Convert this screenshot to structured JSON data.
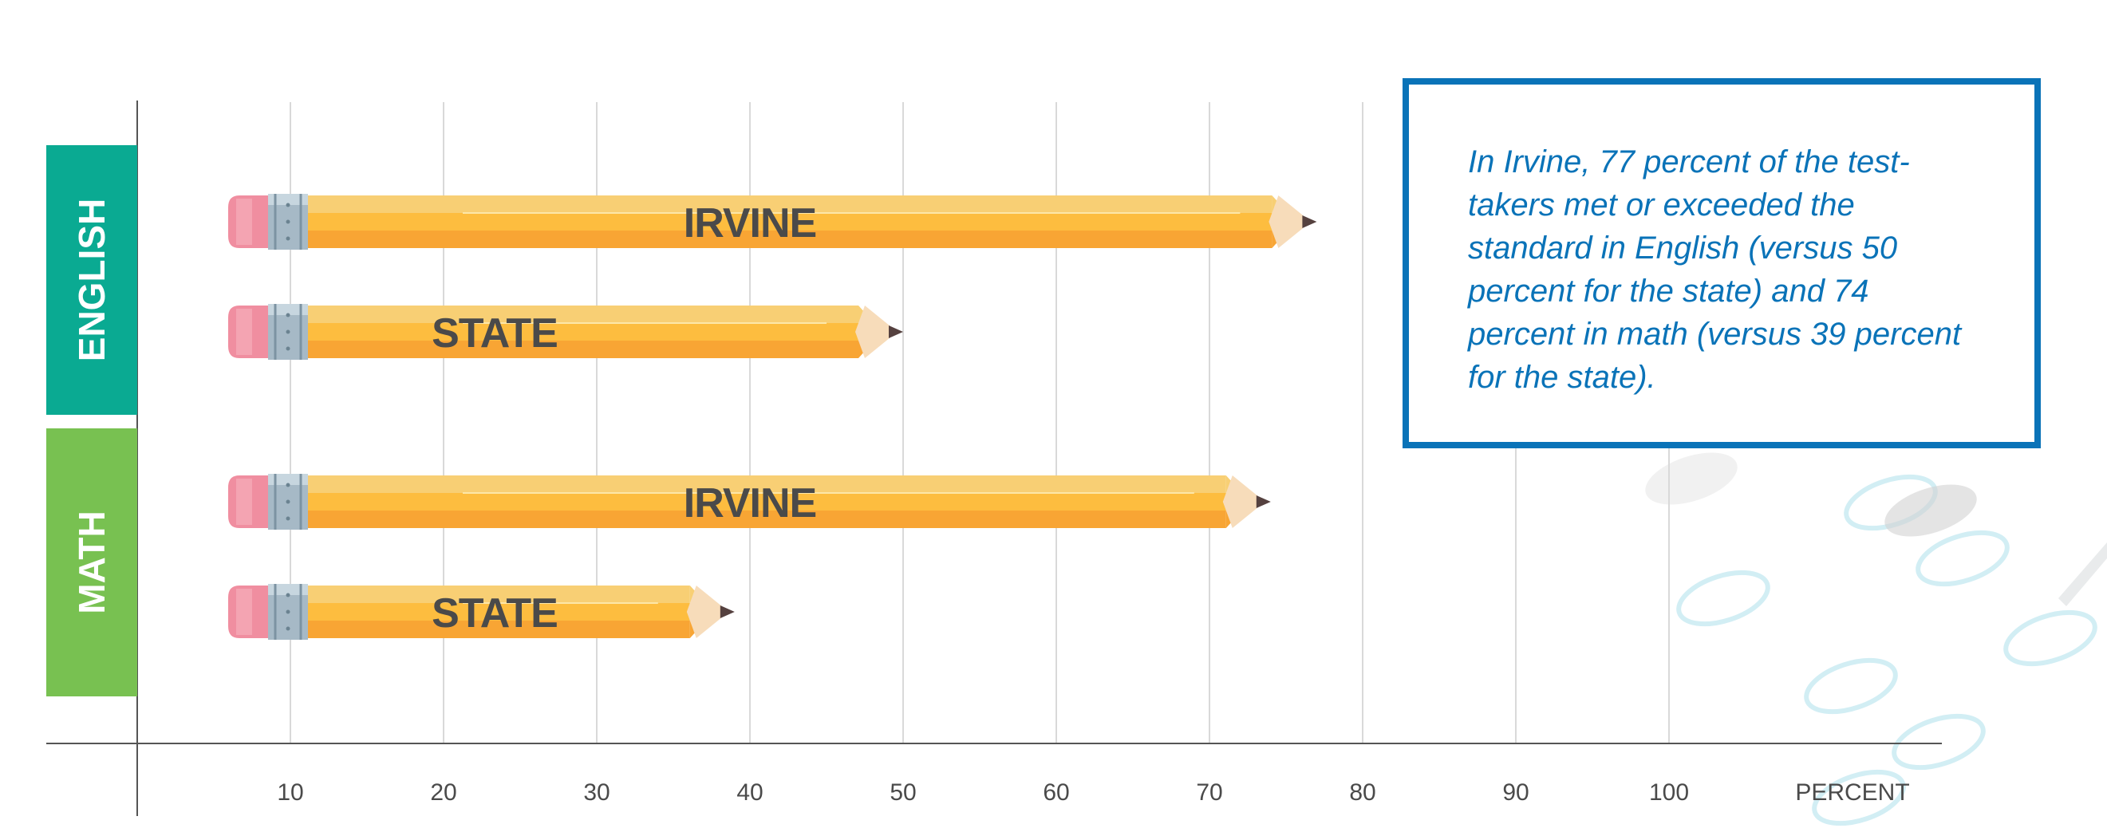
{
  "callout": {
    "text": "In Irvine, 77 percent of the test-takers met or exceeded the standard in English (versus 50 percent for the state) and 74 percent in math (versus 39 percent for the state)."
  },
  "colors": {
    "english": "#0aaa92",
    "math": "#78c151",
    "pencil_top": "#f8cf74",
    "pencil_mid": "#fdbd3f",
    "pencil_bottom": "#f8a534",
    "eraser": "#f08ea0",
    "ferrule": "#a6b9c6",
    "wood": "#f7dcba",
    "lead": "#55413f",
    "label": "#4a4a4a",
    "callout": "#0a73b8"
  },
  "chart_data": {
    "type": "bar",
    "orientation": "horizontal",
    "groups": [
      {
        "name": "ENGLISH",
        "bars": [
          {
            "label": "IRVINE",
            "value": 77
          },
          {
            "label": "STATE",
            "value": 50
          }
        ]
      },
      {
        "name": "MATH",
        "bars": [
          {
            "label": "IRVINE",
            "value": 74
          },
          {
            "label": "STATE",
            "value": 39
          }
        ]
      }
    ],
    "xticks": [
      10,
      20,
      30,
      40,
      50,
      60,
      70,
      80,
      90,
      100
    ],
    "xlabel": "PERCENT",
    "xlim": [
      0,
      118
    ],
    "grid": true
  }
}
